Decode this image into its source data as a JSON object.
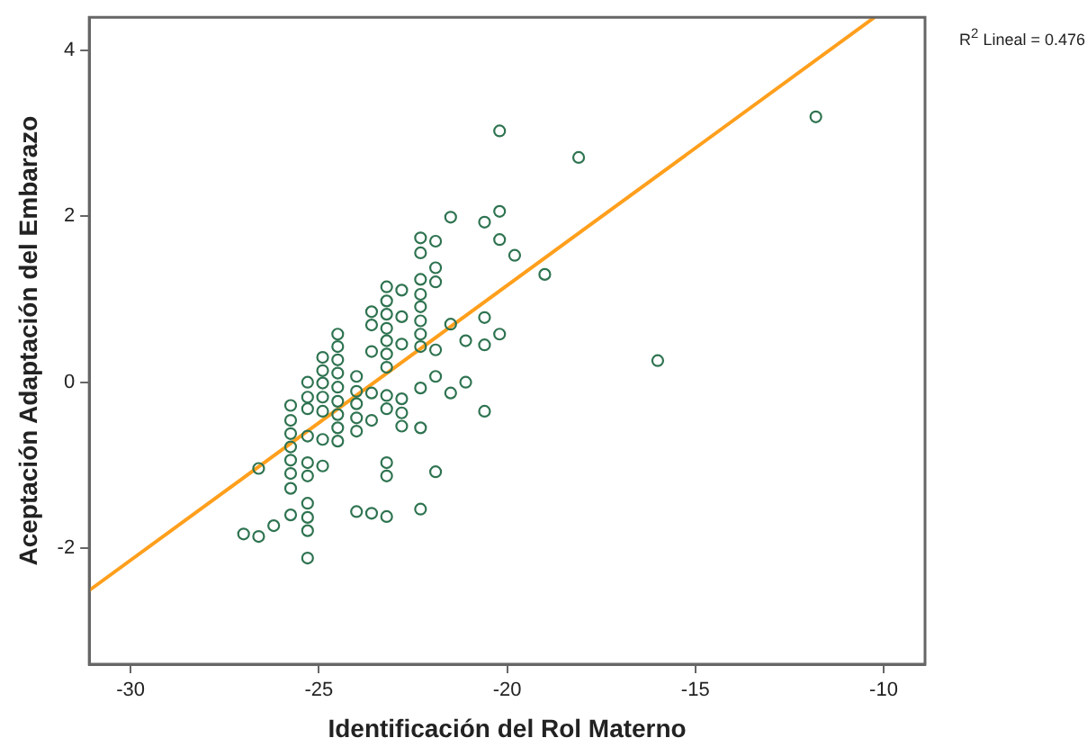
{
  "chart_data": {
    "type": "scatter",
    "xlabel": "Identificación del Rol Materno",
    "ylabel": "Aceptación Adaptación del Embarazo",
    "annotations": [
      "R$^{2}$ Lineal = 0.476"
    ],
    "xlim": [
      -31.1,
      -8.9
    ],
    "ylim": [
      -3.4,
      4.4
    ],
    "xticks": [
      -30,
      -25,
      -20,
      -15,
      -10
    ],
    "yticks": [
      -2,
      0,
      2,
      4
    ],
    "grid": false,
    "legend": false,
    "series": [
      {
        "type": "scatter",
        "color": "#2e7350",
        "marker": "circle",
        "x": [
          -27.0,
          -26.6,
          -26.6,
          -26.2,
          -25.75,
          -25.75,
          -25.75,
          -25.75,
          -25.75,
          -25.75,
          -25.75,
          -25.75,
          -25.3,
          -25.3,
          -25.3,
          -25.3,
          -25.3,
          -25.3,
          -25.3,
          -25.3,
          -25.3,
          -25.3,
          -24.9,
          -24.9,
          -24.9,
          -24.9,
          -24.9,
          -24.9,
          -24.9,
          -24.5,
          -24.5,
          -24.5,
          -24.5,
          -24.5,
          -24.5,
          -24.5,
          -24.5,
          -24.5,
          -24.0,
          -24.0,
          -24.0,
          -24.0,
          -24.0,
          -24.0,
          -23.6,
          -23.6,
          -23.6,
          -23.6,
          -23.6,
          -23.6,
          -23.2,
          -23.2,
          -23.2,
          -23.2,
          -23.2,
          -23.2,
          -23.2,
          -23.2,
          -23.2,
          -23.2,
          -23.2,
          -23.2,
          -22.8,
          -22.8,
          -22.8,
          -22.8,
          -22.8,
          -22.8,
          -22.3,
          -22.3,
          -22.3,
          -22.3,
          -22.3,
          -22.3,
          -22.3,
          -22.3,
          -22.3,
          -22.3,
          -22.3,
          -21.9,
          -21.9,
          -21.9,
          -21.9,
          -21.9,
          -21.9,
          -21.5,
          -21.5,
          -21.5,
          -21.1,
          -21.1,
          -20.6,
          -20.6,
          -20.6,
          -20.6,
          -20.2,
          -20.2,
          -20.2,
          -20.2,
          -19.8,
          -19.0,
          -18.1,
          -16.0,
          -11.8
        ],
        "values": [
          -1.83,
          -1.04,
          -1.86,
          -1.73,
          -0.28,
          -0.46,
          -0.62,
          -0.78,
          -0.94,
          -1.1,
          -1.28,
          -1.6,
          0,
          -0.18,
          -0.32,
          -0.65,
          -0.97,
          -1.13,
          -1.46,
          -1.63,
          -1.79,
          -2.12,
          0.3,
          0.14,
          -0.01,
          -0.18,
          -0.35,
          -0.69,
          -1.01,
          0.58,
          0.43,
          0.27,
          0.11,
          -0.06,
          -0.23,
          -0.39,
          -0.55,
          -0.71,
          0.07,
          -0.11,
          -0.26,
          -0.43,
          -0.59,
          -1.56,
          0.85,
          0.69,
          0.37,
          -0.13,
          -0.46,
          -1.58,
          1.15,
          0.98,
          0.82,
          0.65,
          0.5,
          0.34,
          0.18,
          -0.16,
          -0.32,
          -0.97,
          -1.13,
          -1.62,
          1.11,
          0.79,
          0.46,
          -0.2,
          -0.37,
          -0.53,
          1.74,
          1.56,
          1.24,
          1.06,
          0.91,
          0.74,
          0.58,
          0.43,
          -0.07,
          -0.55,
          -1.53,
          1.7,
          1.38,
          1.21,
          0.39,
          0.07,
          -1.08,
          1.99,
          0.7,
          -0.13,
          0.5,
          0,
          1.93,
          0.78,
          0.45,
          -0.35,
          3.03,
          2.06,
          1.72,
          0.58,
          1.53,
          1.3,
          2.71,
          0.26,
          3.2
        ]
      },
      {
        "type": "line",
        "color": "#ff9f1c",
        "marker": "none",
        "line_style": "solid",
        "x": [
          -31.1,
          -10.24
        ],
        "values": [
          -2.51,
          4.4
        ]
      }
    ]
  }
}
